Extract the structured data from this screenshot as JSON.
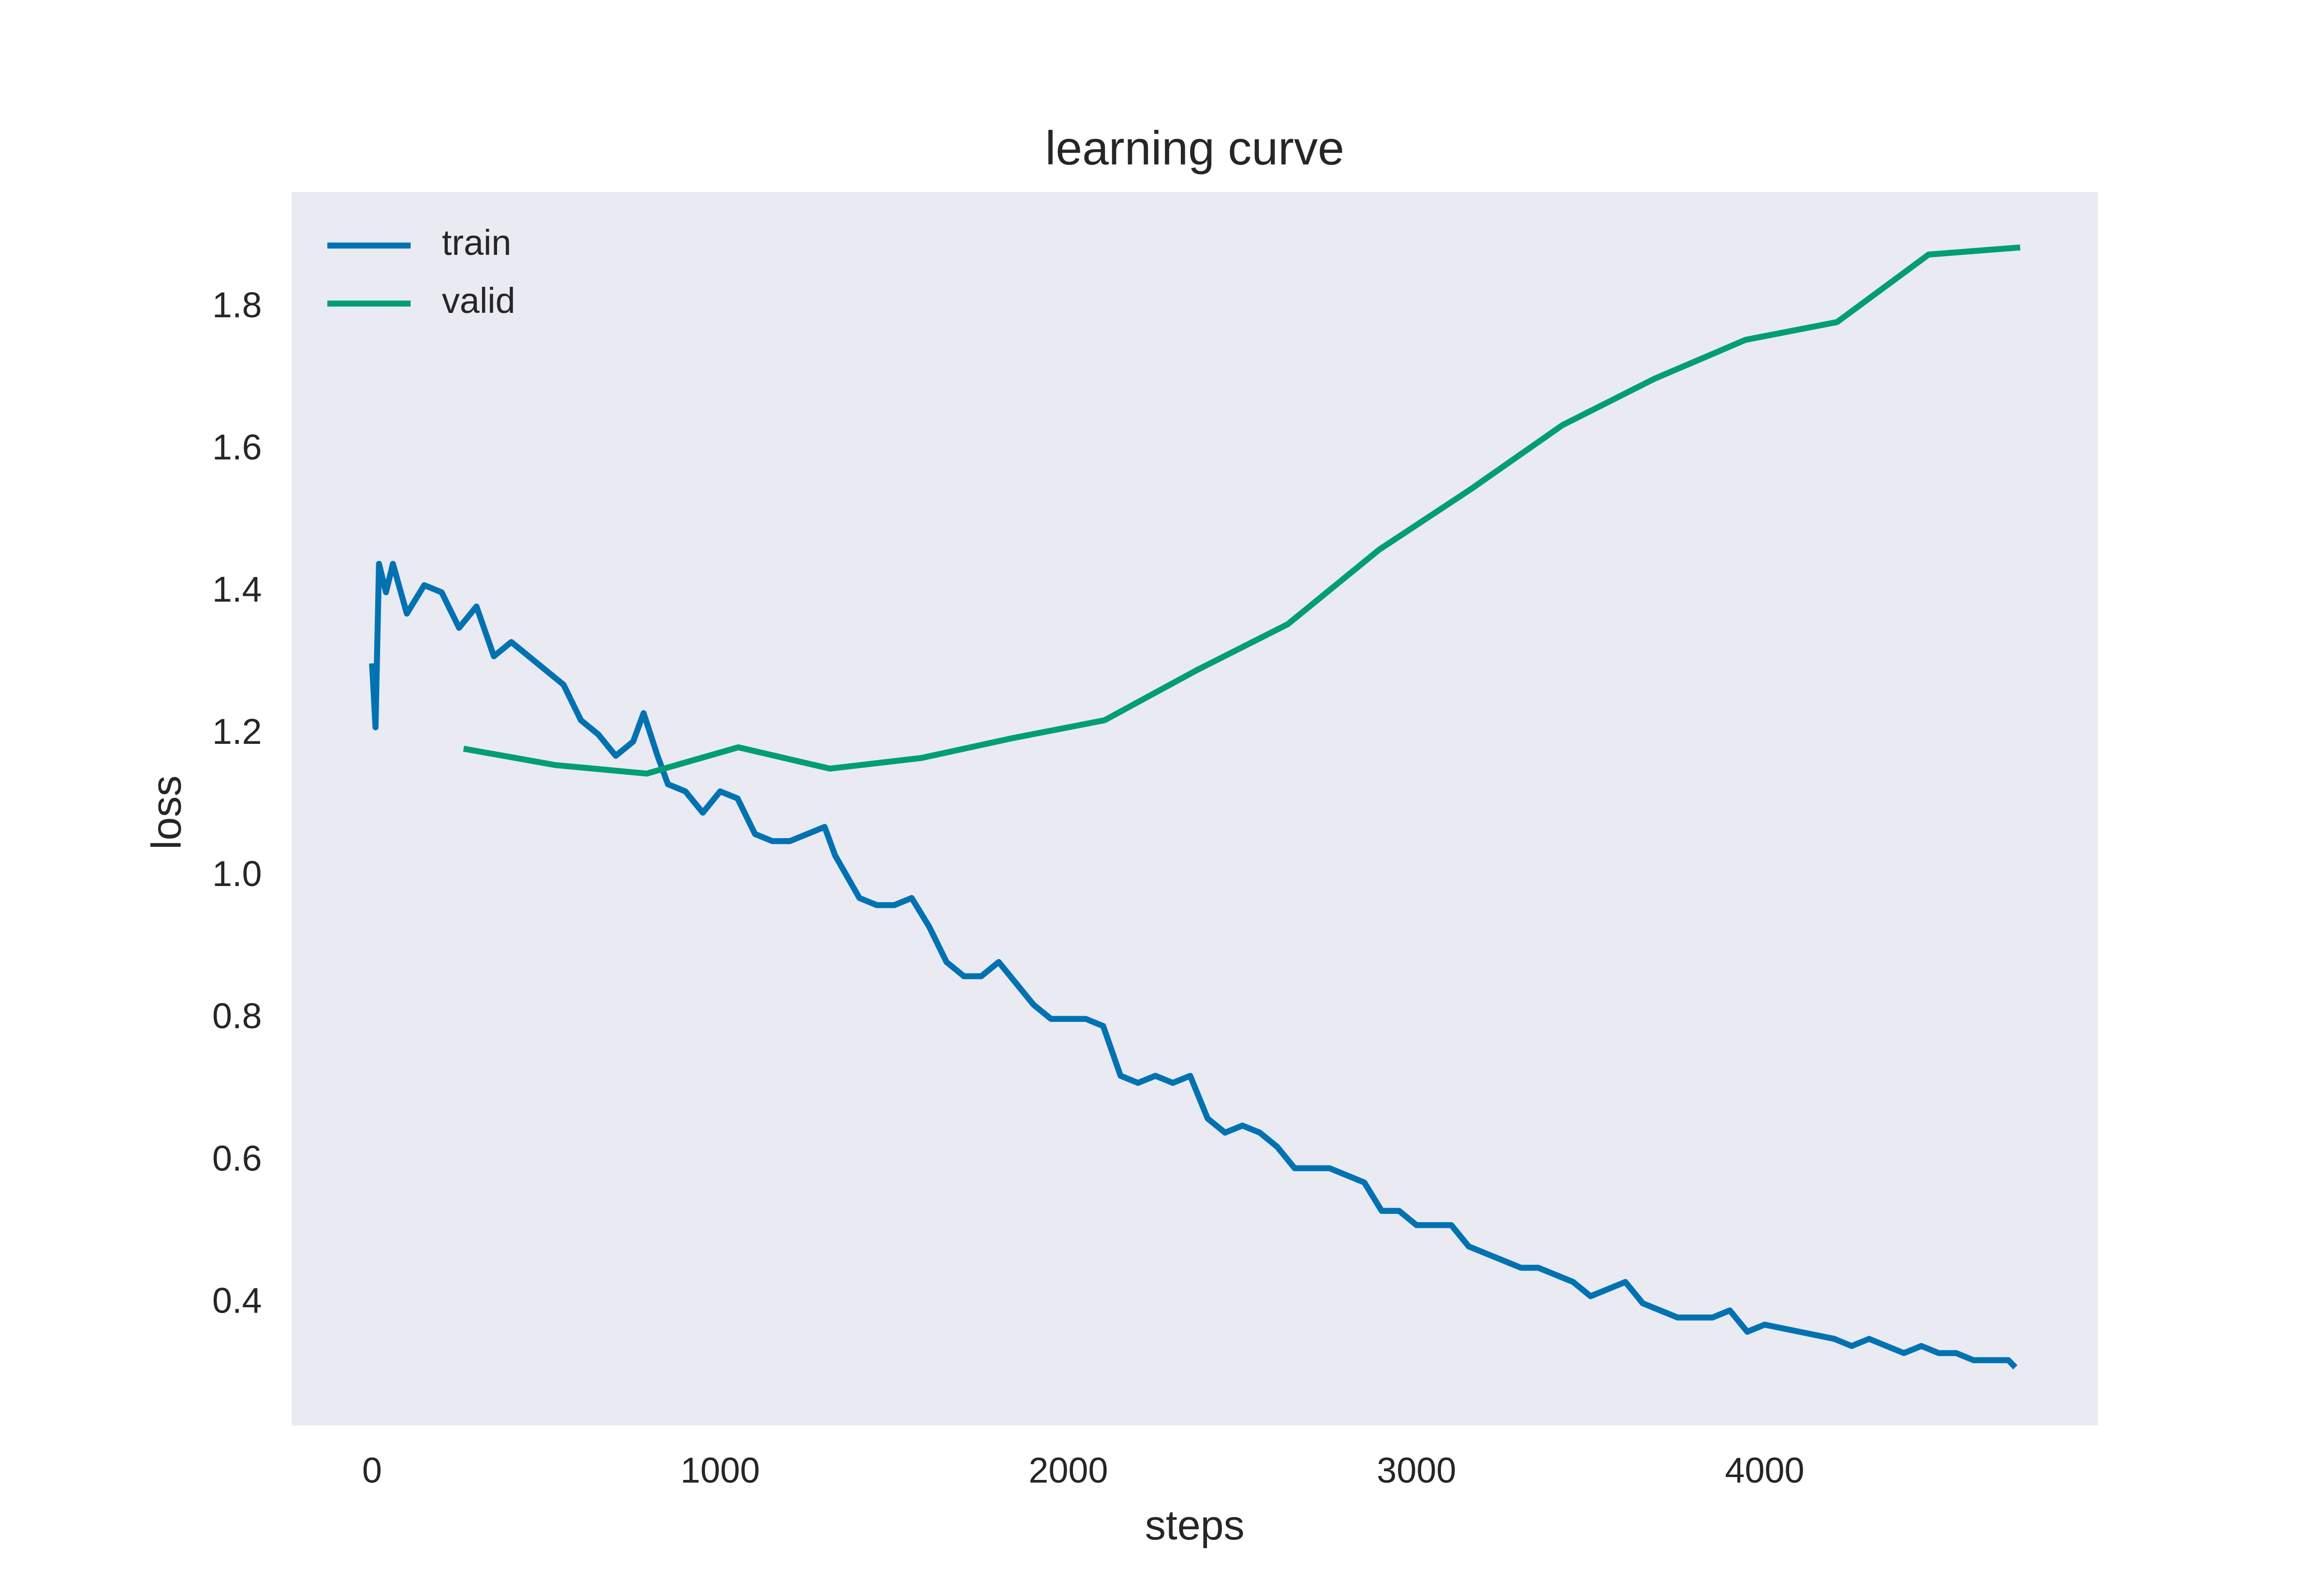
{
  "chart_data": {
    "type": "line",
    "title": "learning curve",
    "xlabel": "steps",
    "ylabel": "loss",
    "xlim": [
      -231,
      4957
    ],
    "ylim": [
      0.228,
      1.963
    ],
    "xticks": [
      0,
      1000,
      2000,
      3000,
      4000
    ],
    "yticks": [
      0.4,
      0.6,
      0.8,
      {
        "value": 1,
        "label": "1.0"
      },
      1.2,
      1.4,
      1.6,
      1.8
    ],
    "grid": false,
    "legend": "upper left",
    "background": "#eaeaf2",
    "series": [
      {
        "name": "train",
        "color": "#0072b2",
        "x": [
          0,
          10,
          20,
          40,
          60,
          100,
          150,
          200,
          250,
          300,
          350,
          400,
          450,
          500,
          550,
          600,
          650,
          700,
          750,
          780,
          820,
          850,
          900,
          950,
          1000,
          1050,
          1100,
          1150,
          1200,
          1250,
          1300,
          1330,
          1400,
          1450,
          1500,
          1550,
          1600,
          1650,
          1700,
          1750,
          1800,
          1850,
          1900,
          1950,
          2000,
          2050,
          2100,
          2150,
          2200,
          2250,
          2300,
          2350,
          2400,
          2450,
          2500,
          2550,
          2600,
          2650,
          2700,
          2750,
          2800,
          2850,
          2900,
          2950,
          3000,
          3100,
          3150,
          3200,
          3250,
          3300,
          3350,
          3400,
          3450,
          3500,
          3550,
          3600,
          3650,
          3700,
          3750,
          3800,
          3850,
          3900,
          3950,
          4000,
          4100,
          4200,
          4250,
          4300,
          4350,
          4400,
          4450,
          4500,
          4550,
          4600,
          4650,
          4700,
          4720
        ],
        "values": [
          1.3,
          1.21,
          1.44,
          1.4,
          1.44,
          1.37,
          1.41,
          1.4,
          1.35,
          1.38,
          1.31,
          1.33,
          1.31,
          1.29,
          1.27,
          1.22,
          1.2,
          1.17,
          1.19,
          1.23,
          1.17,
          1.13,
          1.12,
          1.09,
          1.12,
          1.11,
          1.06,
          1.05,
          1.05,
          1.06,
          1.07,
          1.03,
          0.97,
          0.96,
          0.96,
          0.97,
          0.93,
          0.88,
          0.86,
          0.86,
          0.88,
          0.85,
          0.82,
          0.8,
          0.8,
          0.8,
          0.79,
          0.72,
          0.71,
          0.72,
          0.71,
          0.72,
          0.66,
          0.64,
          0.65,
          0.64,
          0.62,
          0.59,
          0.59,
          0.59,
          0.58,
          0.57,
          0.53,
          0.53,
          0.51,
          0.51,
          0.48,
          0.47,
          0.46,
          0.45,
          0.45,
          0.44,
          0.43,
          0.41,
          0.42,
          0.43,
          0.4,
          0.39,
          0.38,
          0.38,
          0.38,
          0.39,
          0.36,
          0.37,
          0.36,
          0.35,
          0.34,
          0.35,
          0.34,
          0.33,
          0.34,
          0.33,
          0.33,
          0.32,
          0.32,
          0.32,
          0.31
        ]
      },
      {
        "name": "valid",
        "color": "#009e73",
        "x": [
          263,
          526,
          789,
          1052,
          1315,
          1578,
          1841,
          2104,
          2367,
          2630,
          2893,
          3156,
          3419,
          3682,
          3945,
          4208,
          4471,
          4734
        ],
        "values": [
          1.18,
          1.157,
          1.145,
          1.182,
          1.152,
          1.167,
          1.195,
          1.22,
          1.29,
          1.355,
          1.46,
          1.545,
          1.635,
          1.7,
          1.755,
          1.78,
          1.875,
          1.885
        ]
      }
    ]
  }
}
